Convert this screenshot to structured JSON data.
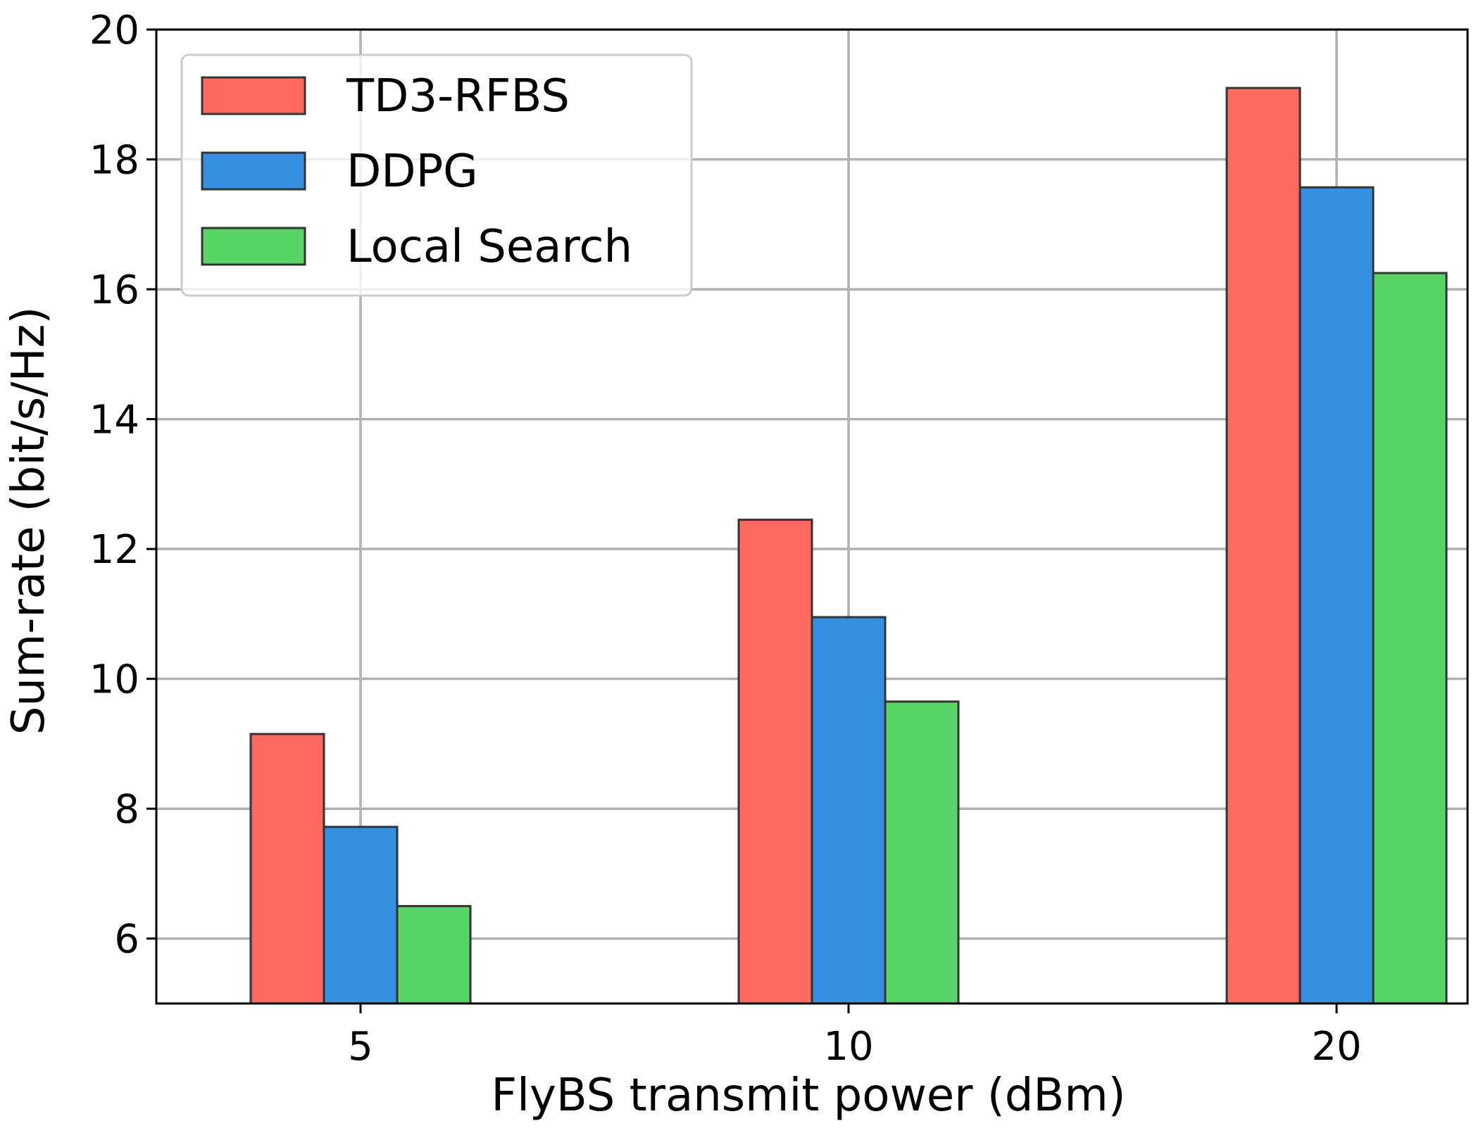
{
  "chart_data": {
    "type": "bar",
    "title": "",
    "xlabel": "FlyBS transmit power (dBm)",
    "ylabel": "Sum-rate (bit/s/Hz)",
    "categories": [
      "5",
      "10",
      "20"
    ],
    "series": [
      {
        "name": "TD3-RFBS",
        "values": [
          9.15,
          12.45,
          19.1
        ],
        "color": "#ff6961"
      },
      {
        "name": "DDPG",
        "values": [
          7.72,
          10.95,
          17.57
        ],
        "color": "#348fe0"
      },
      {
        "name": "Local Search",
        "values": [
          6.5,
          9.65,
          16.25
        ],
        "color": "#58d466"
      }
    ],
    "ylim": [
      5,
      20
    ],
    "yticks": [
      "6",
      "8",
      "10",
      "12",
      "14",
      "16",
      "18",
      "20"
    ],
    "grid": true,
    "legend_position": "top-left",
    "colors": {
      "edge": "#333333",
      "grid": "#b0b0b0",
      "axes": "#000000"
    }
  }
}
